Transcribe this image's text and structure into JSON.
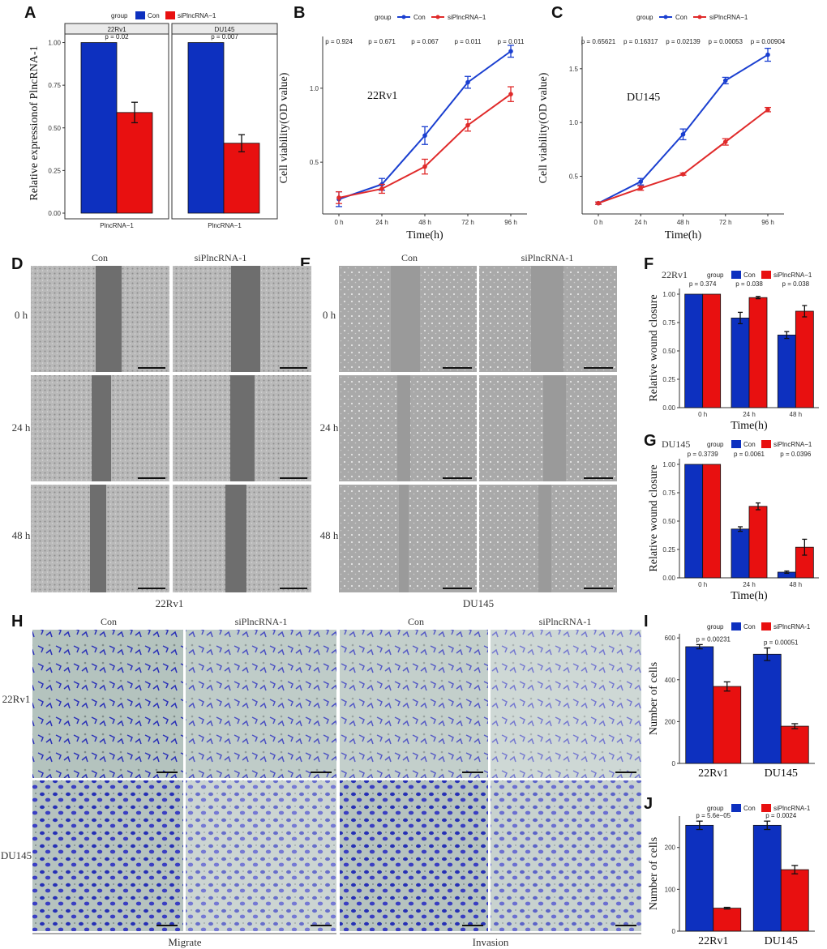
{
  "colors": {
    "con": "#0d30bf",
    "si": "#e81010",
    "con_line": "#1a3fd0",
    "si_line": "#e02a2a"
  },
  "panel_labels": {
    "A": "A",
    "B": "B",
    "C": "C",
    "D": "D",
    "E": "E",
    "F": "F",
    "G": "G",
    "H": "H",
    "I": "I",
    "J": "J"
  },
  "legend": {
    "title": "group",
    "con": "Con",
    "si": "siPlncRNA−1",
    "si_alt": "siPlncRNA-1"
  },
  "chart_data": [
    {
      "id": "A",
      "type": "bar",
      "facets": [
        "22Rv1",
        "DU145"
      ],
      "category": "PlncRNA−1",
      "ylabel": "Relative expressionof PlncRNA-1",
      "ylim": [
        0,
        1.05
      ],
      "yticks": [
        "0.00",
        "0.25",
        "0.50",
        "0.75",
        "1.00"
      ],
      "ytick_values": [
        0,
        0.25,
        0.5,
        0.75,
        1.0
      ],
      "series": [
        {
          "name": "Con",
          "values": [
            1.0,
            1.0
          ],
          "errors": [
            0.0,
            0.0
          ]
        },
        {
          "name": "siPlncRNA−1",
          "values": [
            0.59,
            0.41
          ],
          "errors": [
            0.06,
            0.05
          ]
        }
      ],
      "pvalues": [
        "p = 0.02",
        "p = 0.007"
      ]
    },
    {
      "id": "B",
      "type": "line",
      "annotation": "22Rv1",
      "x": [
        "0 h",
        "24 h",
        "48 h",
        "72 h",
        "96 h"
      ],
      "xlabel": "Time(h)",
      "ylabel": "Cell viability(OD value)",
      "ylim": [
        0.15,
        1.35
      ],
      "yticks": [
        "0.5",
        "1.0"
      ],
      "ytick_values": [
        0.5,
        1.0
      ],
      "series": [
        {
          "name": "Con",
          "values": [
            0.25,
            0.35,
            0.68,
            1.04,
            1.25
          ],
          "errors": [
            0.05,
            0.04,
            0.06,
            0.04,
            0.04
          ]
        },
        {
          "name": "siPlncRNA−1",
          "values": [
            0.26,
            0.32,
            0.47,
            0.75,
            0.96
          ],
          "errors": [
            0.04,
            0.03,
            0.05,
            0.04,
            0.05
          ]
        }
      ],
      "pvalues": [
        "p = 0.924",
        "p = 0.671",
        "p = 0.067",
        "p = 0.011",
        "p = 0.011"
      ]
    },
    {
      "id": "C",
      "type": "line",
      "annotation": "DU145",
      "x": [
        "0 h",
        "24 h",
        "48 h",
        "72 h",
        "96 h"
      ],
      "xlabel": "Time(h)",
      "ylabel": "Cell viability(OD value)",
      "ylim": [
        0.15,
        1.8
      ],
      "yticks": [
        "0.5",
        "1.0",
        "1.5"
      ],
      "ytick_values": [
        0.5,
        1.0,
        1.5
      ],
      "series": [
        {
          "name": "Con",
          "values": [
            0.25,
            0.45,
            0.89,
            1.39,
            1.63
          ],
          "errors": [
            0.01,
            0.03,
            0.05,
            0.03,
            0.06
          ]
        },
        {
          "name": "siPlncRNA−1",
          "values": [
            0.25,
            0.39,
            0.52,
            0.82,
            1.12
          ],
          "errors": [
            0.01,
            0.02,
            0.01,
            0.03,
            0.02
          ]
        }
      ],
      "pvalues": [
        "p = 0.65621",
        "p = 0.16317",
        "p = 0.02139",
        "p = 0.00053",
        "p = 0.00904"
      ]
    },
    {
      "id": "F",
      "type": "bar",
      "annotation": "22Rv1",
      "categories": [
        "0 h",
        "24 h",
        "48 h"
      ],
      "xlabel": "Time(h)",
      "ylabel": "Relative wound closure",
      "ylim": [
        0,
        1.05
      ],
      "yticks": [
        "0.00",
        "0.25",
        "0.50",
        "0.75",
        "1.00"
      ],
      "ytick_values": [
        0,
        0.25,
        0.5,
        0.75,
        1.0
      ],
      "series": [
        {
          "name": "Con",
          "values": [
            1.0,
            0.79,
            0.64
          ],
          "errors": [
            0,
            0.05,
            0.03
          ]
        },
        {
          "name": "siPlncRNA−1",
          "values": [
            1.0,
            0.97,
            0.85
          ],
          "errors": [
            0,
            0.01,
            0.05
          ]
        }
      ],
      "pvalues": [
        "p = 0.374",
        "p = 0.038",
        "p = 0.038"
      ]
    },
    {
      "id": "G",
      "type": "bar",
      "annotation": "DU145",
      "categories": [
        "0 h",
        "24 h",
        "48 h"
      ],
      "xlabel": "Time(h)",
      "ylabel": "Relative wound closure",
      "ylim": [
        0,
        1.05
      ],
      "yticks": [
        "0.00",
        "0.25",
        "0.50",
        "0.75",
        "1.00"
      ],
      "ytick_values": [
        0,
        0.25,
        0.5,
        0.75,
        1.0
      ],
      "series": [
        {
          "name": "Con",
          "values": [
            1.0,
            0.43,
            0.05
          ],
          "errors": [
            0,
            0.02,
            0.01
          ]
        },
        {
          "name": "siPlncRNA−1",
          "values": [
            1.0,
            0.63,
            0.27
          ],
          "errors": [
            0,
            0.03,
            0.07
          ]
        }
      ],
      "pvalues": [
        "p = 0.3739",
        "p = 0.0061",
        "p = 0.0396"
      ]
    },
    {
      "id": "I",
      "type": "bar",
      "categories": [
        "22Rv1",
        "DU145"
      ],
      "ylabel": "Number of cells",
      "ylim": [
        0,
        620
      ],
      "yticks": [
        "0",
        "200",
        "400",
        "600"
      ],
      "ytick_values": [
        0,
        200,
        400,
        600
      ],
      "series": [
        {
          "name": "Con",
          "values": [
            558,
            522
          ],
          "errors": [
            10,
            30
          ]
        },
        {
          "name": "siPlncRNA-1",
          "values": [
            368,
            178
          ],
          "errors": [
            22,
            12
          ]
        }
      ],
      "pvalues": [
        "p = 0.00231",
        "p = 0.00051"
      ]
    },
    {
      "id": "J",
      "type": "bar",
      "categories": [
        "22Rv1",
        "DU145"
      ],
      "ylabel": "Number of cells",
      "ylim": [
        0,
        275
      ],
      "yticks": [
        "0",
        "100",
        "200"
      ],
      "ytick_values": [
        0,
        100,
        200
      ],
      "series": [
        {
          "name": "Con",
          "values": [
            253,
            253
          ],
          "errors": [
            10,
            10
          ]
        },
        {
          "name": "siPlncRNA-1",
          "values": [
            55,
            147
          ],
          "errors": [
            2,
            10
          ]
        }
      ],
      "pvalues": [
        "p = 5.6e−05",
        "p = 0.0024"
      ]
    }
  ],
  "wound": {
    "col_con": "Con",
    "col_si": "siPlncRNA-1",
    "rows": [
      "0 h",
      "24 h",
      "48 h"
    ],
    "caption_d": "22Rv1",
    "caption_e": "DU145"
  },
  "transwell": {
    "col_con": "Con",
    "col_si": "siPlncRNA-1",
    "rows": [
      "22Rv1",
      "DU145"
    ],
    "caption_left": "Migrate",
    "caption_right": "Invasion"
  }
}
